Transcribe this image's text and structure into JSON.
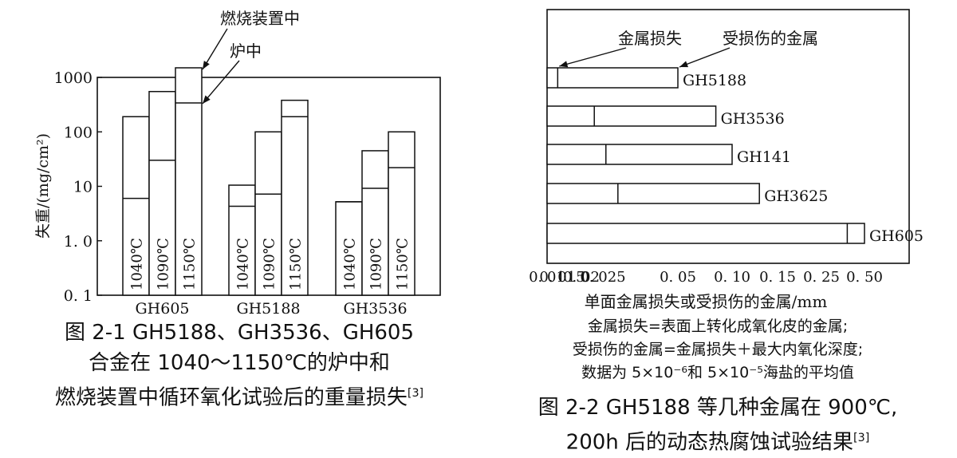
{
  "left_figure": {
    "caption_lines": [
      "图 2-1 GH5188、GH3536、GH605",
      "合金在 1040～1150℃的炉中和",
      "燃烧装置中循环氧化试验后的重量损失"
    ],
    "caption_ref": "[3]",
    "annotation_burner": "燃烧装置中",
    "annotation_furnace": "炉中"
  },
  "right_figure": {
    "caption_lines": [
      "图 2-2 GH5188 等几种金属在 900℃,",
      "200h 后的动态热腐蚀试验结果"
    ],
    "caption_ref": "[3]",
    "annotation_loss": "金属损失",
    "annotation_damaged": "受损伤的金属",
    "notes": [
      "金属损失=表面上转化成氧化皮的金属;",
      "受损伤的金属=金属损失＋最大内氧化深度;",
      "数据为 5×10⁻⁶和 5×10⁻⁵海盐的平均值"
    ]
  },
  "chart_data": [
    {
      "type": "bar",
      "scale": "log",
      "ylabel": "失重/(mg/cm²)",
      "yticks": [
        "1000",
        "100",
        "10",
        "1. 0",
        "0. 1"
      ],
      "ylim": [
        0.1,
        1000
      ],
      "groups": [
        "GH605",
        "GH5188",
        "GH3536"
      ],
      "temperatures": [
        "1040℃",
        "1090℃",
        "1150℃"
      ],
      "series": [
        {
          "name": "炉中",
          "values": [
            [
              6,
              30,
              340
            ],
            [
              4.3,
              7.2,
              190
            ],
            [
              5.2,
              9.2,
              22
            ]
          ]
        },
        {
          "name": "燃烧装置中",
          "values": [
            [
              190,
              550,
              1500
            ],
            [
              10.5,
              100,
              380
            ],
            [
              5.2,
              45,
              100
            ]
          ]
        }
      ]
    },
    {
      "type": "bar",
      "orientation": "horizontal",
      "xlabel": "单面金属损失或受损伤的金属/mm",
      "xticks": [
        "0. 01",
        "0. 015",
        "0. 02",
        "0. 025",
        "0. 05",
        "0. 10",
        "0. 15",
        "0. 25",
        "0. 50"
      ],
      "categories": [
        "GH5188",
        "GH3536",
        "GH141",
        "GH3625",
        "GH605"
      ],
      "series": [
        {
          "name": "金属损失",
          "values": [
            0.0135,
            0.023,
            0.026,
            0.03,
            0.4
          ]
        },
        {
          "name": "受损伤的金属",
          "values": [
            0.05,
            0.085,
            0.1,
            0.13,
            0.5
          ]
        }
      ]
    }
  ]
}
